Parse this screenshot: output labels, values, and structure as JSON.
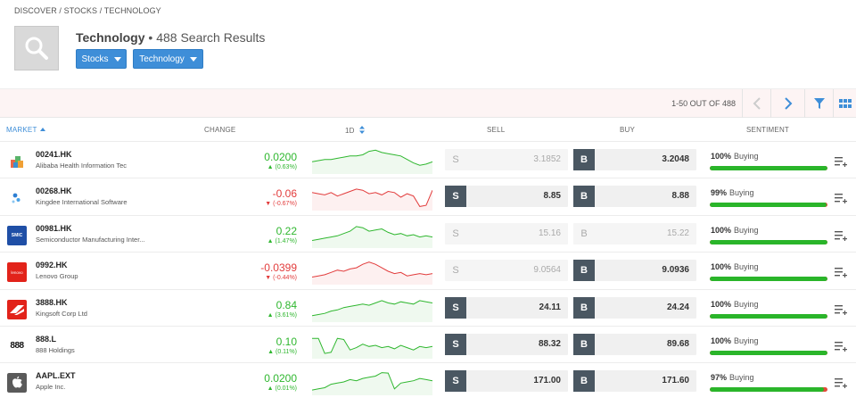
{
  "breadcrumb": {
    "discover": "DISCOVER",
    "stocks": "STOCKS",
    "technology": "TECHNOLOGY",
    "sep": "/"
  },
  "header": {
    "title": "Technology",
    "subtitle": "• 488 Search Results"
  },
  "filters": {
    "stocks": "Stocks",
    "technology": "Technology"
  },
  "pager": {
    "text": "1-50 OUT OF 488"
  },
  "columns": {
    "market": "MARKET",
    "change": "CHANGE",
    "period": "1D",
    "sell": "SELL",
    "buy": "BUY",
    "sentiment": "SENTIMENT"
  },
  "colors": {
    "up": "#2fb72f",
    "down": "#e23c3c",
    "accent": "#3e8ed8",
    "tag": "#4a5762"
  },
  "rows": [
    {
      "ticker": "00241.HK",
      "name": "Alibaba Health Information Tec",
      "change": "0.0200",
      "pct": "(0.63%)",
      "dir": "up",
      "sell_label": "S",
      "sell": "3.1852",
      "sell_active": false,
      "buy_label": "B",
      "buy": "3.2048",
      "buy_active": true,
      "sentiment_pct": "100%",
      "sentiment_label": "Buying",
      "sentiment_value": 100,
      "logo": "alibaba-health-logo",
      "spark": [
        0.55,
        0.5,
        0.45,
        0.45,
        0.4,
        0.35,
        0.3,
        0.3,
        0.25,
        0.1,
        0.05,
        0.15,
        0.2,
        0.25,
        0.3,
        0.45,
        0.6,
        0.7,
        0.65,
        0.55
      ]
    },
    {
      "ticker": "00268.HK",
      "name": "Kingdee International Software",
      "change": "-0.06",
      "pct": "(-0.67%)",
      "dir": "down",
      "sell_label": "S",
      "sell": "8.85",
      "sell_active": true,
      "buy_label": "B",
      "buy": "8.88",
      "buy_active": true,
      "sentiment_pct": "99%",
      "sentiment_label": "Buying",
      "sentiment_value": 99,
      "logo": "kingdee-logo",
      "spark": [
        0.3,
        0.35,
        0.4,
        0.3,
        0.45,
        0.35,
        0.25,
        0.15,
        0.2,
        0.35,
        0.3,
        0.4,
        0.25,
        0.3,
        0.5,
        0.35,
        0.45,
        0.9,
        0.85,
        0.2
      ]
    },
    {
      "ticker": "00981.HK",
      "name": "Semiconductor Manufacturing Inter...",
      "change": "0.22",
      "pct": "(1.47%)",
      "dir": "up",
      "sell_label": "S",
      "sell": "15.16",
      "sell_active": false,
      "buy_label": "B",
      "buy": "15.22",
      "buy_active": false,
      "sentiment_pct": "100%",
      "sentiment_label": "Buying",
      "sentiment_value": 100,
      "logo": "smic-logo",
      "spark": [
        0.75,
        0.7,
        0.65,
        0.6,
        0.55,
        0.45,
        0.35,
        0.15,
        0.2,
        0.35,
        0.3,
        0.25,
        0.4,
        0.5,
        0.45,
        0.55,
        0.5,
        0.6,
        0.55,
        0.6
      ]
    },
    {
      "ticker": "0992.HK",
      "name": "Lenovo Group",
      "change": "-0.0399",
      "pct": "(-0.44%)",
      "dir": "down",
      "sell_label": "S",
      "sell": "9.0564",
      "sell_active": false,
      "buy_label": "B",
      "buy": "9.0936",
      "buy_active": true,
      "sentiment_pct": "100%",
      "sentiment_label": "Buying",
      "sentiment_value": 100,
      "logo": "lenovo-logo",
      "spark": [
        0.75,
        0.7,
        0.65,
        0.55,
        0.45,
        0.5,
        0.4,
        0.35,
        0.2,
        0.1,
        0.2,
        0.35,
        0.5,
        0.6,
        0.55,
        0.7,
        0.65,
        0.6,
        0.65,
        0.6
      ]
    },
    {
      "ticker": "3888.HK",
      "name": "Kingsoft Corp Ltd",
      "change": "0.84",
      "pct": "(3.61%)",
      "dir": "up",
      "sell_label": "S",
      "sell": "24.11",
      "sell_active": true,
      "buy_label": "B",
      "buy": "24.24",
      "buy_active": true,
      "sentiment_pct": "100%",
      "sentiment_label": "Buying",
      "sentiment_value": 100,
      "logo": "kingsoft-logo",
      "spark": [
        0.8,
        0.75,
        0.7,
        0.6,
        0.55,
        0.45,
        0.4,
        0.35,
        0.3,
        0.35,
        0.25,
        0.15,
        0.25,
        0.3,
        0.2,
        0.25,
        0.3,
        0.15,
        0.2,
        0.25
      ]
    },
    {
      "ticker": "888.L",
      "name": "888 Holdings",
      "change": "0.10",
      "pct": "(0.11%)",
      "dir": "up",
      "sell_label": "S",
      "sell": "88.32",
      "sell_active": true,
      "buy_label": "B",
      "buy": "89.68",
      "buy_active": true,
      "sentiment_pct": "100%",
      "sentiment_label": "Buying",
      "sentiment_value": 100,
      "logo": "888-logo",
      "spark": [
        0.2,
        0.2,
        0.85,
        0.8,
        0.2,
        0.25,
        0.7,
        0.6,
        0.45,
        0.55,
        0.5,
        0.6,
        0.55,
        0.65,
        0.5,
        0.6,
        0.7,
        0.55,
        0.6,
        0.55
      ]
    },
    {
      "ticker": "AAPL.EXT",
      "name": "Apple Inc.",
      "change": "0.0200",
      "pct": "(0.01%)",
      "dir": "up",
      "sell_label": "S",
      "sell": "171.00",
      "sell_active": true,
      "buy_label": "B",
      "buy": "171.60",
      "buy_active": true,
      "sentiment_pct": "97%",
      "sentiment_label": "Buying",
      "sentiment_value": 97,
      "logo": "apple-logo",
      "spark": [
        0.85,
        0.8,
        0.75,
        0.6,
        0.55,
        0.5,
        0.4,
        0.45,
        0.35,
        0.3,
        0.25,
        0.1,
        0.12,
        0.8,
        0.55,
        0.5,
        0.45,
        0.35,
        0.4,
        0.45
      ]
    }
  ]
}
